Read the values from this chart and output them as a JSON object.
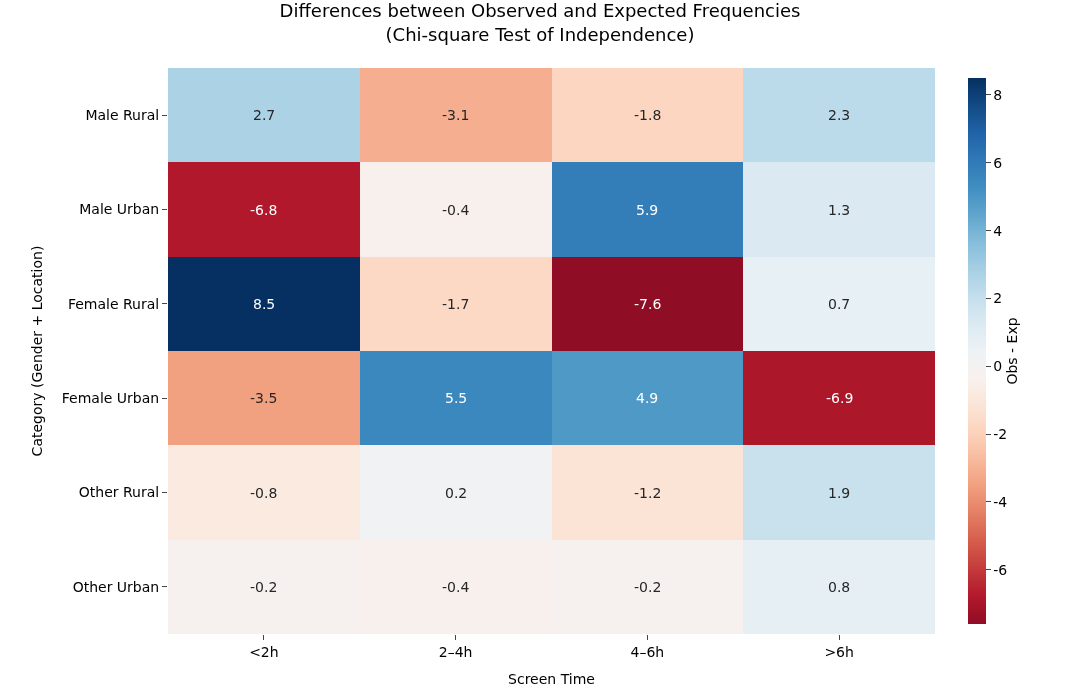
{
  "chart_data": {
    "type": "heatmap",
    "title": "Differences between Observed and Expected Frequencies",
    "subtitle": "(Chi-square Test of Independence)",
    "xlabel": "Screen Time",
    "ylabel": "Category (Gender + Location)",
    "clabel": "Obs - Exp",
    "categories": [
      "<2h",
      "2–4h",
      "4–6h",
      ">6h"
    ],
    "y_categories": [
      "Male Rural",
      "Male Urban",
      "Female Rural",
      "Female Urban",
      "Other Rural",
      "Other Urban"
    ],
    "cells": [
      [
        2.7,
        -3.1,
        -1.8,
        2.3
      ],
      [
        -6.8,
        -0.4,
        5.9,
        1.3
      ],
      [
        8.5,
        -1.7,
        -7.6,
        0.7
      ],
      [
        -3.5,
        5.5,
        4.9,
        -6.9
      ],
      [
        -0.8,
        0.2,
        -1.2,
        1.9
      ],
      [
        -0.2,
        -0.4,
        -0.2,
        0.8
      ]
    ],
    "clim": [
      -7.6,
      8.5
    ],
    "cticks": [
      -6,
      -4,
      -2,
      0,
      2,
      4,
      6,
      8
    ],
    "data_labels": true
  }
}
